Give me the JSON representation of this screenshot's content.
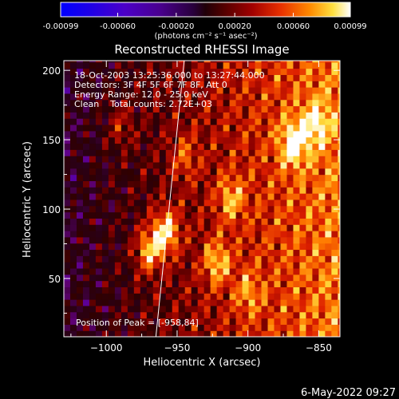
{
  "chart_data": {
    "type": "heatmap",
    "title": "Reconstructed RHESSI Image",
    "xlabel": "Heliocentric X (arcsec)",
    "ylabel": "Heliocentric Y (arcsec)",
    "xlim": [
      -1030,
      -835
    ],
    "ylim": [
      8,
      207
    ],
    "x_ticks": [
      -1000,
      -950,
      -900,
      -850
    ],
    "x_tick_labels": [
      "−1000",
      "−950",
      "−900",
      "−850"
    ],
    "y_ticks": [
      50,
      100,
      150,
      200
    ],
    "y_tick_labels": [
      "50",
      "100",
      "150",
      "200"
    ],
    "annotations": [
      "18-Oct-2003 13:25:36.000 to 13:27:44.000",
      "Detectors: 3F 4F 5F 6F 7F 8F, Att 0",
      "Energy Range: 12.0 - 25.0 keV",
      "Clean    Total counts: 2.72E+03"
    ],
    "peak_label": "Position of Peak = [-958,84]",
    "peak": [
      -958,
      84
    ],
    "limb_line": [
      [
        -965,
        8
      ],
      [
        -945,
        207
      ]
    ],
    "sources": [
      {
        "x": -958,
        "y": 84,
        "value": 0.00099
      },
      {
        "x": -970,
        "y": 70,
        "value": 0.00085
      },
      {
        "x": -922,
        "y": 62,
        "value": 0.0007
      },
      {
        "x": -912,
        "y": 108,
        "value": 0.0006
      },
      {
        "x": -868,
        "y": 148,
        "value": 0.0008
      },
      {
        "x": -852,
        "y": 162,
        "value": 0.0006
      },
      {
        "x": -945,
        "y": 138,
        "value": 0.00045
      },
      {
        "x": -900,
        "y": 40,
        "value": 0.00045
      },
      {
        "x": -990,
        "y": 160,
        "value": 0.0004
      }
    ],
    "colorbar": {
      "min": -0.00099,
      "max": 0.00099,
      "ticks": [
        -0.00099,
        -0.0006,
        -0.0002,
        0.0002,
        0.0006,
        0.00099
      ],
      "tick_labels": [
        "-0.00099",
        "-0.00060",
        "-0.00020",
        "0.00020",
        "0.00060",
        "0.00099"
      ],
      "units": "(photons cm⁻² s⁻¹ asec⁻²)",
      "colormap": [
        "#0000ff",
        "#4b00c8",
        "#64007e",
        "#2a0018",
        "#300000",
        "#8c0000",
        "#dc1e00",
        "#ff7a00",
        "#ffe040",
        "#ffffff"
      ]
    },
    "grid": false,
    "legend": "none"
  },
  "footer": {
    "date": "6-May-2022 09:27"
  },
  "colors": {
    "background": "#000000",
    "foreground": "#ffffff",
    "limb": "#ffffff"
  }
}
